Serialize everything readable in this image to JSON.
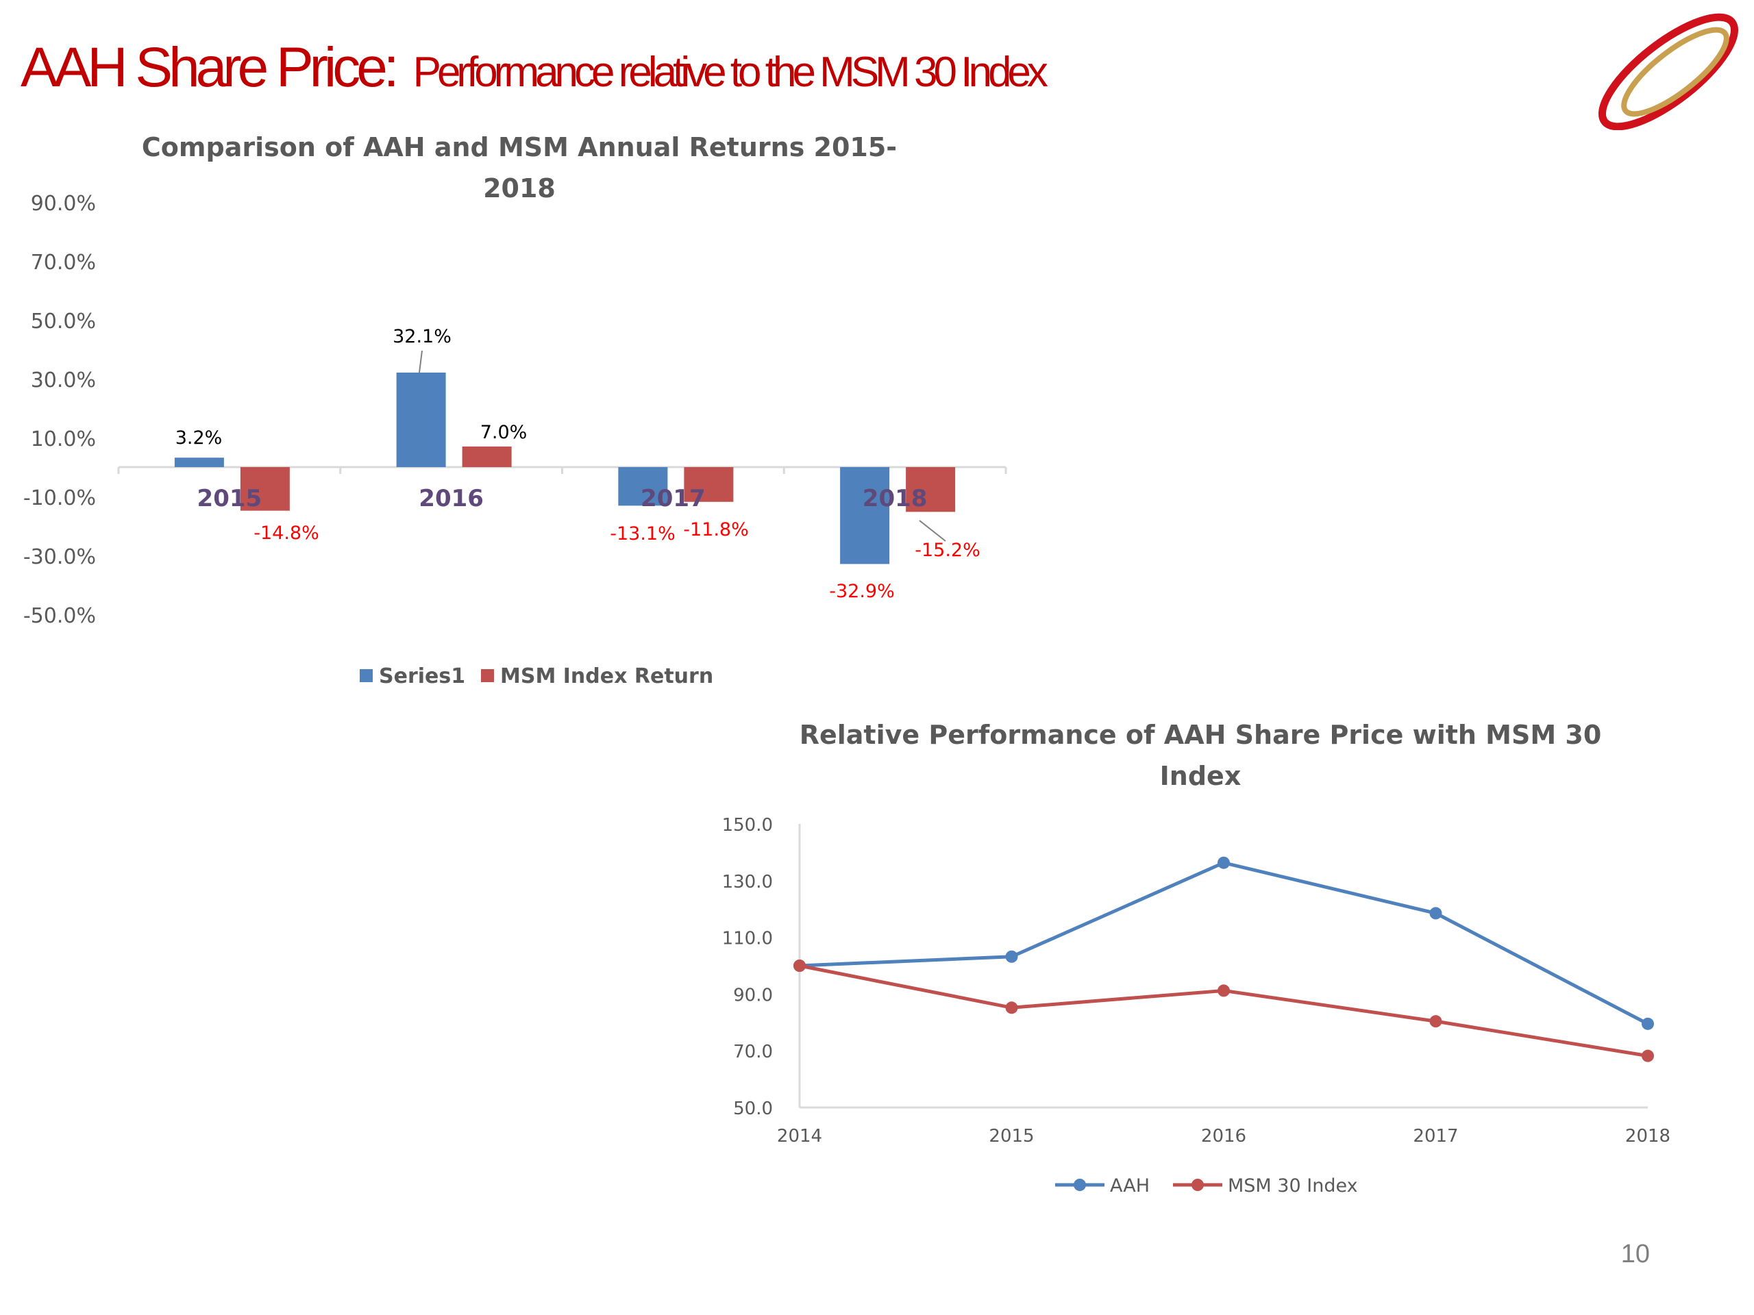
{
  "slide": {
    "title_main": "AAH Share Price:",
    "title_sub": "Performance relative to the MSM 30 Index",
    "page_number": "10"
  },
  "colors": {
    "title_red": "#c00000",
    "aah_blue": "#4f81bd",
    "msm_red": "#c0504d",
    "negative_label": "#ff0000",
    "category_label": "#5f497a",
    "logo_red": "#d0101a",
    "logo_gold": "#c8a050"
  },
  "chart_data": [
    {
      "type": "bar",
      "title": "Comparison of AAH and MSM Annual Returns 2015-2018",
      "title_lines": [
        "Comparison of AAH and MSM Annual Returns 2015-",
        "2018"
      ],
      "categories": [
        "2015",
        "2016",
        "2017",
        "2018"
      ],
      "series": [
        {
          "name": "Series1",
          "values": [
            3.2,
            32.1,
            -13.1,
            -32.9
          ],
          "labels": [
            "3.2%",
            "32.1%",
            "-13.1%",
            "-32.9%"
          ]
        },
        {
          "name": "MSM Index Return",
          "values": [
            -14.8,
            7.0,
            -11.8,
            -15.2
          ],
          "labels": [
            "-14.8%",
            "7.0%",
            "-11.8%",
            "-15.2%"
          ]
        }
      ],
      "ylim": [
        -50,
        90
      ],
      "y_ticks": [
        90,
        70,
        50,
        30,
        10,
        -10,
        -30,
        -50
      ],
      "y_tick_labels": [
        "90.0%",
        "70.0%",
        "50.0%",
        "30.0%",
        "10.0%",
        "-10.0%",
        "-30.0%",
        "-50.0%"
      ],
      "xlabel": "",
      "ylabel": "",
      "grid": false,
      "legend": "bottom"
    },
    {
      "type": "line",
      "title": "Relative Performance of AAH Share Price with MSM 30 Index",
      "title_lines": [
        "Relative Performance of AAH Share Price with MSM 30",
        "Index"
      ],
      "x": [
        "2014",
        "2015",
        "2016",
        "2017",
        "2018"
      ],
      "series": [
        {
          "name": "AAH",
          "values": [
            100.0,
            103.2,
            136.3,
            118.5,
            79.5
          ]
        },
        {
          "name": "MSM 30 Index",
          "values": [
            100.0,
            85.2,
            91.2,
            80.4,
            68.2
          ]
        }
      ],
      "ylim": [
        50,
        150
      ],
      "y_ticks": [
        150,
        130,
        110,
        90,
        70,
        50
      ],
      "y_tick_labels": [
        "150.0",
        "130.0",
        "110.0",
        "90.0",
        "70.0",
        "50.0"
      ],
      "xlabel": "",
      "ylabel": "",
      "grid": false,
      "legend": "bottom"
    }
  ]
}
